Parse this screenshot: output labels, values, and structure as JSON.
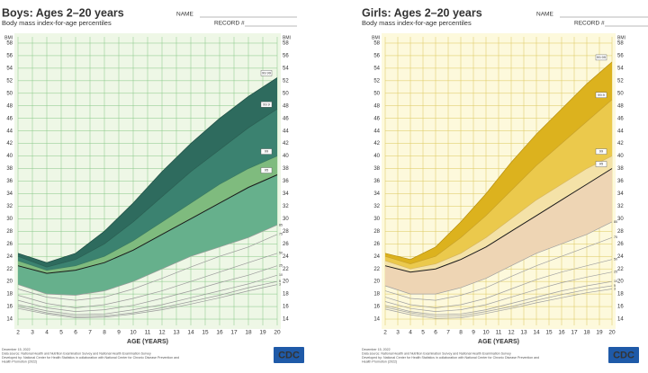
{
  "chart_data": [
    {
      "type": "line",
      "title": "Boys: Ages 2–20 years",
      "subtitle": "Body mass index-for-age percentiles",
      "name_label": "NAME",
      "record_label": "RECORD #",
      "ylabel": "BMI",
      "xlabel": "AGE (YEARS)",
      "x": [
        2,
        4,
        6,
        8,
        10,
        12,
        14,
        16,
        18,
        20
      ],
      "xlim": [
        2,
        20
      ],
      "xticks": [
        2,
        3,
        4,
        5,
        6,
        7,
        8,
        9,
        10,
        11,
        12,
        13,
        14,
        15,
        16,
        17,
        18,
        19,
        20
      ],
      "ylim": [
        13,
        59
      ],
      "yticks": [
        14,
        16,
        18,
        20,
        22,
        24,
        26,
        28,
        30,
        32,
        34,
        36,
        38,
        40,
        42,
        44,
        46,
        48,
        50,
        52,
        54,
        56,
        58
      ],
      "grid": true,
      "background": "#eef7e6",
      "grid_color": "#86c785",
      "title_color": "#1d5a4e",
      "series": [
        {
          "name": "99.99",
          "color": "#1f4d44",
          "fill": "#2e6b5e",
          "values": [
            24.5,
            23,
            24.5,
            28,
            32.5,
            37.5,
            42,
            46,
            49.5,
            52.5
          ]
        },
        {
          "name": "99.9",
          "color": "#2a5e52",
          "fill": "#3b8270",
          "values": [
            24,
            22.3,
            23.5,
            26,
            29.5,
            33.5,
            37.5,
            41,
            44.5,
            47.5
          ]
        },
        {
          "name": "99",
          "color": "#3a7a62",
          "fill": "#7fbb7e",
          "values": [
            23.3,
            21.8,
            22.5,
            24,
            26.5,
            29.5,
            32.5,
            35.5,
            38,
            40
          ]
        },
        {
          "name": "95",
          "color": "#1a1a1a",
          "fill": "#66b08c",
          "values": [
            22.5,
            21.3,
            21.8,
            23,
            25,
            27.5,
            30,
            32.5,
            35,
            37
          ]
        },
        {
          "name": "85",
          "color": "#9a9a9a",
          "values": [
            19.5,
            18,
            17.8,
            18.5,
            20,
            22,
            24,
            25.5,
            27,
            29
          ]
        },
        {
          "name": "75",
          "color": "#9a9a9a",
          "values": [
            18.8,
            17.5,
            17,
            17.5,
            18.8,
            20.5,
            22.3,
            24,
            25.5,
            27.5
          ]
        },
        {
          "name": "50",
          "color": "#9a9a9a",
          "values": [
            17.8,
            16.5,
            15.8,
            16.3,
            17.3,
            18.5,
            20,
            21.5,
            23,
            24.5
          ]
        },
        {
          "name": "25",
          "color": "#9a9a9a",
          "values": [
            17,
            15.8,
            15.2,
            15.5,
            16.2,
            17.3,
            18.5,
            19.8,
            21,
            22.5
          ]
        },
        {
          "name": "10",
          "color": "#9a9a9a",
          "values": [
            16.3,
            15.3,
            14.7,
            14.8,
            15.5,
            16.3,
            17.4,
            18.5,
            19.6,
            21
          ]
        },
        {
          "name": "5",
          "color": "#9a9a9a",
          "values": [
            16,
            15,
            14.4,
            14.5,
            15,
            15.8,
            16.8,
            17.8,
            19,
            20
          ]
        },
        {
          "name": "3",
          "color": "#9a9a9a",
          "values": [
            15.7,
            14.8,
            14.2,
            14.3,
            14.8,
            15.5,
            16.4,
            17.4,
            18.5,
            19.5
          ]
        }
      ],
      "footer": [
        "December 15, 2022",
        "Data source: National Health and Nutrition Examination Survey and National Health Examination Survey",
        "Developed by: National Center for Health Statistics in collaboration with National Center for Chronic Disease Prevention and",
        "Health Promotion (2022)"
      ],
      "logo": "CDC"
    },
    {
      "type": "line",
      "title": "Girls: Ages 2–20 years",
      "subtitle": "Body mass index-for-age percentiles",
      "name_label": "NAME",
      "record_label": "RECORD #",
      "ylabel": "BMI",
      "xlabel": "AGE (YEARS)",
      "x": [
        2,
        4,
        6,
        8,
        10,
        12,
        14,
        16,
        18,
        20
      ],
      "xlim": [
        2,
        20
      ],
      "xticks": [
        2,
        3,
        4,
        5,
        6,
        7,
        8,
        9,
        10,
        11,
        12,
        13,
        14,
        15,
        16,
        17,
        18,
        19,
        20
      ],
      "ylim": [
        13,
        59
      ],
      "yticks": [
        14,
        16,
        18,
        20,
        22,
        24,
        26,
        28,
        30,
        32,
        34,
        36,
        38,
        40,
        42,
        44,
        46,
        48,
        50,
        52,
        54,
        56,
        58
      ],
      "grid": true,
      "background": "#fdf9dc",
      "grid_color": "#dcc75a",
      "title_color": "#3a3a3a",
      "series": [
        {
          "name": "99.99",
          "color": "#b8900f",
          "fill": "#dcb21e",
          "values": [
            24.5,
            23.5,
            25.5,
            29.5,
            34,
            39,
            43.5,
            47.5,
            51.5,
            55
          ]
        },
        {
          "name": "99.9",
          "color": "#c9a22a",
          "fill": "#ebc94c",
          "values": [
            24,
            22.8,
            24,
            27,
            30.5,
            34.5,
            38.5,
            42,
            45.5,
            49
          ]
        },
        {
          "name": "99",
          "color": "#d6b660",
          "fill": "#f4e2a8",
          "values": [
            23.3,
            22,
            22.8,
            24.5,
            27,
            30,
            33,
            35.5,
            38,
            40
          ]
        },
        {
          "name": "95",
          "color": "#1a1a1a",
          "fill": "#eed5b4",
          "values": [
            22.5,
            21.5,
            22,
            23.5,
            25.5,
            28,
            30.5,
            33,
            35.5,
            38
          ]
        },
        {
          "name": "85",
          "color": "#a0a0a0",
          "values": [
            19.3,
            18,
            18,
            19,
            20.5,
            22.5,
            24.5,
            26,
            27.5,
            29.5
          ]
        },
        {
          "name": "75",
          "color": "#a0a0a0",
          "values": [
            18.5,
            17.3,
            17,
            17.8,
            19,
            20.8,
            22.5,
            24,
            25.5,
            27
          ]
        },
        {
          "name": "50",
          "color": "#a0a0a0",
          "values": [
            17.5,
            16.3,
            15.8,
            16.3,
            17.3,
            18.8,
            20.3,
            21.5,
            22.5,
            23.5
          ]
        },
        {
          "name": "25",
          "color": "#a0a0a0",
          "values": [
            16.8,
            15.7,
            15.2,
            15.5,
            16.3,
            17.5,
            18.7,
            19.8,
            20.7,
            21.5
          ]
        },
        {
          "name": "10",
          "color": "#a0a0a0",
          "values": [
            16.2,
            15.2,
            14.7,
            14.8,
            15.5,
            16.5,
            17.5,
            18.5,
            19.3,
            20
          ]
        },
        {
          "name": "5",
          "color": "#a0a0a0",
          "values": [
            15.9,
            15,
            14.4,
            14.5,
            15.2,
            16,
            17,
            17.9,
            18.7,
            19.3
          ]
        },
        {
          "name": "3",
          "color": "#a0a0a0",
          "values": [
            15.6,
            14.7,
            14.1,
            14.2,
            14.9,
            15.7,
            16.6,
            17.4,
            18.2,
            18.8
          ]
        }
      ],
      "footer": [
        "December 15, 2022",
        "Data source: National Health and Nutrition Examination Survey and National Health Examination Survey",
        "Developed by: National Center for Health Statistics in collaboration with National Center for Chronic Disease Prevention and",
        "Health Promotion (2022)"
      ],
      "logo": "CDC"
    }
  ]
}
